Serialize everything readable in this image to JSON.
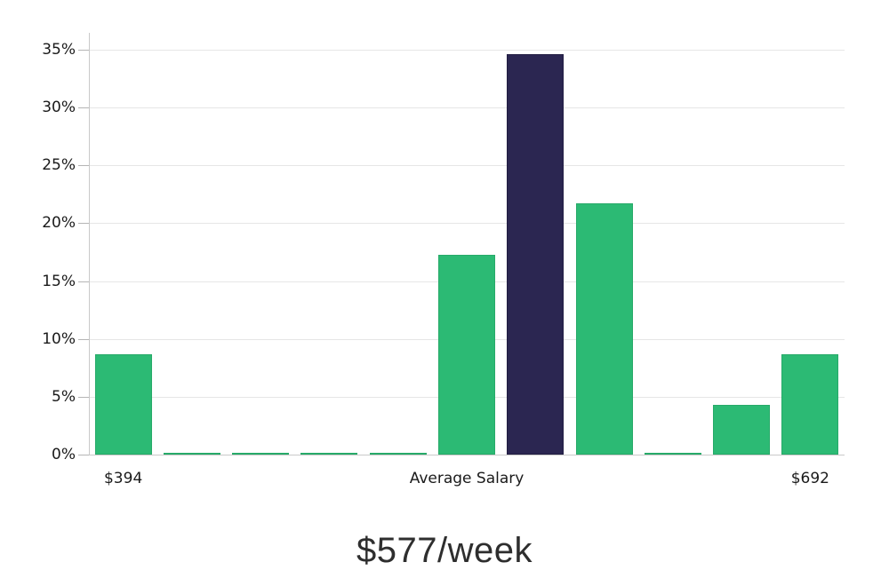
{
  "chart_data": {
    "type": "bar",
    "title": "$577/week",
    "xlabel": "",
    "ylabel": "",
    "ylim": [
      0,
      36.5
    ],
    "yticks": [
      0,
      5,
      10,
      15,
      20,
      25,
      30,
      35
    ],
    "ytick_suffix": "%",
    "grid": true,
    "legend_position": "none",
    "bars": [
      {
        "value": 8.7,
        "role": "normal"
      },
      {
        "value": 0.15,
        "role": "normal"
      },
      {
        "value": 0.15,
        "role": "normal"
      },
      {
        "value": 0.15,
        "role": "normal"
      },
      {
        "value": 0.15,
        "role": "normal"
      },
      {
        "value": 17.3,
        "role": "normal"
      },
      {
        "value": 34.6,
        "role": "highlight"
      },
      {
        "value": 21.7,
        "role": "normal"
      },
      {
        "value": 0.15,
        "role": "normal"
      },
      {
        "value": 4.3,
        "role": "normal"
      },
      {
        "value": 8.7,
        "role": "normal"
      }
    ],
    "xtick_labels": [
      {
        "text": "$394",
        "bar_index": 0
      },
      {
        "text": "Average Salary",
        "bar_index": 5
      },
      {
        "text": "$692",
        "bar_index": 10
      }
    ]
  },
  "colors": {
    "bar_normal": "#2cba74",
    "bar_normal_border": "#27aa69",
    "bar_highlight": "#2b2651",
    "bar_highlight_border": "#211d42",
    "gridline": "#e6e6e6",
    "axis": "#c9c9c9",
    "tick_mark": "#b5b5b5",
    "tick_text": "#1a1a1a",
    "title_text": "#2e2e2e",
    "background": "#ffffff"
  }
}
